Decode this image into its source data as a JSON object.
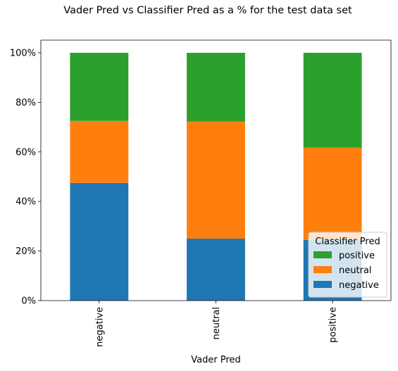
{
  "chart_data": {
    "type": "bar",
    "stacked": true,
    "title": "Vader Pred vs Classifier Pred as a % for the test data set",
    "xlabel": "Vader Pred",
    "ylabel": "",
    "categories": [
      "negative",
      "neutral",
      "positive"
    ],
    "ylim": [
      0,
      100
    ],
    "yticks": [
      "0%",
      "20%",
      "40%",
      "60%",
      "80%",
      "100%"
    ],
    "series": [
      {
        "name": "negative",
        "color": "#1f77b4",
        "values": [
          47.5,
          25.0,
          24.5
        ]
      },
      {
        "name": "neutral",
        "color": "#ff7f0e",
        "values": [
          25.0,
          47.3,
          37.2
        ]
      },
      {
        "name": "positive",
        "color": "#2ca02c",
        "values": [
          27.5,
          27.7,
          38.3
        ]
      }
    ],
    "legend": {
      "title": "Classifier Pred",
      "placement": "lower-right",
      "entries": [
        "positive",
        "neutral",
        "negative"
      ]
    },
    "grid": false
  }
}
